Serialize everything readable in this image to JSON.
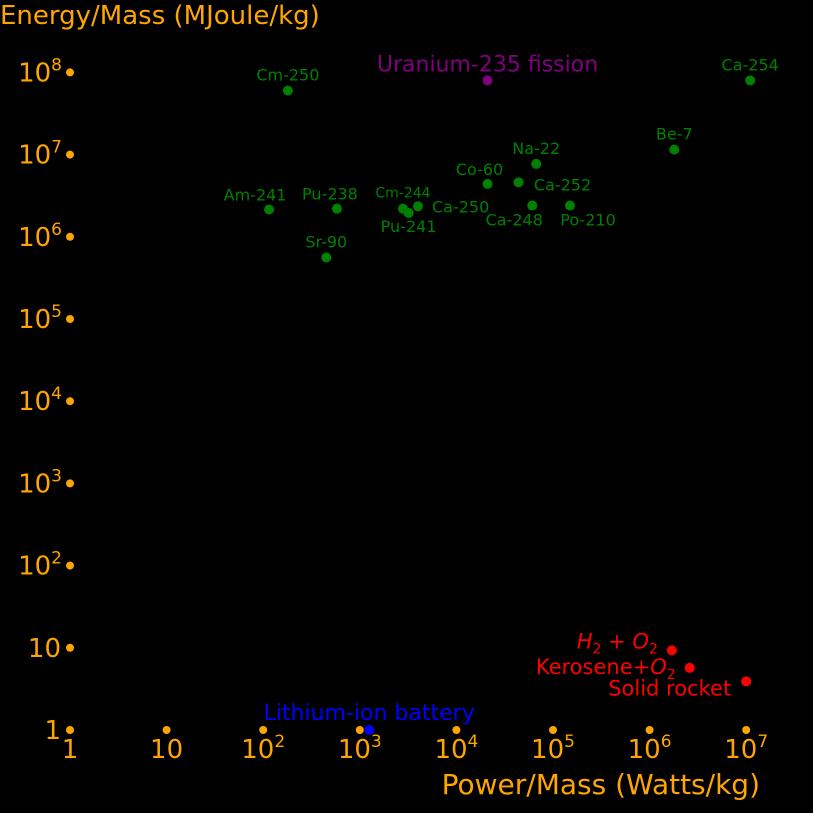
{
  "chart_data": {
    "type": "scatter",
    "title": "",
    "xlabel": "Power/Mass (Watts/kg)",
    "ylabel": "Energy/Mass (MJoule/kg)",
    "xscale": "log",
    "yscale": "log",
    "xlim": [
      1,
      10000000
    ],
    "ylim": [
      1,
      100000000
    ],
    "grid": false,
    "background": "#000000",
    "axis_color": "#FFA500",
    "x_ticks": [
      {
        "value": 1,
        "base": "1",
        "exp": ""
      },
      {
        "value": 10,
        "base": "10",
        "exp": ""
      },
      {
        "value": 100,
        "base": "10",
        "exp": "2"
      },
      {
        "value": 1000,
        "base": "10",
        "exp": "3"
      },
      {
        "value": 10000,
        "base": "10",
        "exp": "4"
      },
      {
        "value": 100000,
        "base": "10",
        "exp": "5"
      },
      {
        "value": 1000000,
        "base": "10",
        "exp": "6"
      },
      {
        "value": 10000000,
        "base": "10",
        "exp": "7"
      }
    ],
    "y_ticks": [
      {
        "value": 1,
        "base": "1",
        "exp": ""
      },
      {
        "value": 10,
        "base": "10",
        "exp": ""
      },
      {
        "value": 100,
        "base": "10",
        "exp": "2"
      },
      {
        "value": 1000,
        "base": "10",
        "exp": "3"
      },
      {
        "value": 10000,
        "base": "10",
        "exp": "4"
      },
      {
        "value": 100000,
        "base": "10",
        "exp": "5"
      },
      {
        "value": 1000000,
        "base": "10",
        "exp": "6"
      },
      {
        "value": 10000000,
        "base": "10",
        "exp": "7"
      },
      {
        "value": 100000000,
        "base": "10",
        "exp": "8"
      }
    ],
    "points": [
      {
        "label": "Cm-250",
        "x": 180,
        "y": 60000000,
        "color": "#008000",
        "label_pos": "above"
      },
      {
        "label": "Uranium-235 fission",
        "x": 21000,
        "y": 80000000,
        "color": "#800080",
        "label_pos": "above"
      },
      {
        "label": "Ca-254",
        "x": 11000000,
        "y": 80000000,
        "color": "#008000",
        "label_pos": "above"
      },
      {
        "label": "Be-7",
        "x": 1800000,
        "y": 11500000,
        "color": "#008000",
        "label_pos": "above"
      },
      {
        "label": "Na-22",
        "x": 67000,
        "y": 7700000,
        "color": "#008000",
        "label_pos": "above"
      },
      {
        "label": "Co-60",
        "x": 21000,
        "y": 4400000,
        "color": "#008000",
        "label_pos": "above-left"
      },
      {
        "label": "Ca-252",
        "x": 44000,
        "y": 4600000,
        "color": "#008000",
        "label_pos": "below-right"
      },
      {
        "label": "Am-241",
        "x": 115,
        "y": 2150000,
        "color": "#008000",
        "label_pos": "above-left"
      },
      {
        "label": "Pu-238",
        "x": 580,
        "y": 2200000,
        "color": "#008000",
        "label_pos": "above-left"
      },
      {
        "label": "Cm-244",
        "x": 2800,
        "y": 2200000,
        "color": "#008000",
        "label_pos": "above",
        "small": true
      },
      {
        "label": "Pu-241",
        "x": 3200,
        "y": 1950000,
        "color": "#008000",
        "label_pos": "below"
      },
      {
        "label": "Ca-250",
        "x": 4000,
        "y": 2350000,
        "color": "#008000",
        "label_pos": "right"
      },
      {
        "label": "Ca-248",
        "x": 61000,
        "y": 2400000,
        "color": "#008000",
        "label_pos": "below-left"
      },
      {
        "label": "Po-210",
        "x": 150000,
        "y": 2400000,
        "color": "#008000",
        "label_pos": "below-right"
      },
      {
        "label": "Sr-90",
        "x": 450,
        "y": 560000,
        "color": "#008000",
        "label_pos": "above"
      },
      {
        "label": "H2+O2",
        "x": 1700000,
        "y": 9.3,
        "color": "#FF0000",
        "label_pos": "left",
        "math": "h2o2"
      },
      {
        "label": "Kerosene+O2",
        "x": 2600000,
        "y": 5.7,
        "color": "#FF0000",
        "label_pos": "left",
        "math": "kero"
      },
      {
        "label": "Solid rocket",
        "x": 10000000,
        "y": 3.9,
        "color": "#FF0000",
        "label_pos": "left"
      },
      {
        "label": "Lithium-ion battery",
        "x": 1250,
        "y": 1,
        "color": "#0000FF",
        "label_pos": "above"
      }
    ]
  }
}
